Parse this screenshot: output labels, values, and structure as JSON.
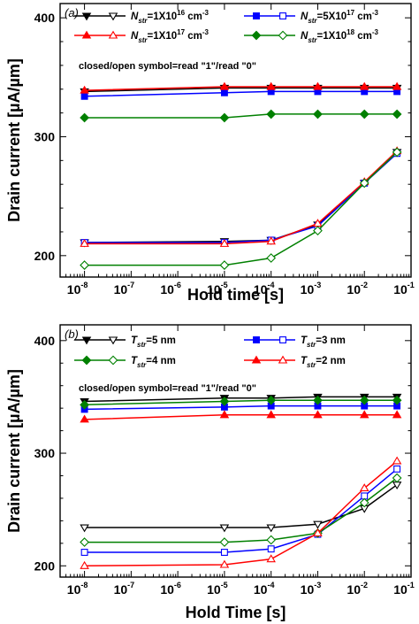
{
  "chart_data": [
    {
      "type": "line",
      "panel_label": "(a)",
      "xlabel": "Hold time [s]",
      "ylabel": "Drain current [µA/µm]",
      "x_scale": "log",
      "xlim": [
        3e-09,
        0.1
      ],
      "ylim": [
        182,
        412
      ],
      "x_ticks": [
        {
          "base": "10",
          "exp": "-8"
        },
        {
          "base": "10",
          "exp": "-7"
        },
        {
          "base": "10",
          "exp": "-6"
        },
        {
          "base": "10",
          "exp": "-5"
        },
        {
          "base": "10",
          "exp": "-4"
        },
        {
          "base": "10",
          "exp": "-3"
        },
        {
          "base": "10",
          "exp": "-2"
        },
        {
          "base": "10",
          "exp": "-1"
        }
      ],
      "y_ticks": [
        "200",
        "300",
        "400"
      ],
      "note": "closed/open symbol=read \"1\"/read \"0\"",
      "legend": [
        {
          "sym": "N",
          "sub": "str",
          "val": "=1X10",
          "sup": "16",
          "unit": " cm",
          "unitsup": "-3"
        },
        {
          "sym": "N",
          "sub": "str",
          "val": "=5X10",
          "sup": "17",
          "unit": " cm",
          "unitsup": "-3"
        },
        {
          "sym": "N",
          "sub": "str",
          "val": "=1X10",
          "sup": "17",
          "unit": " cm",
          "unitsup": "-3"
        },
        {
          "sym": "N",
          "sub": "str",
          "val": "=1X10",
          "sup": "18",
          "unit": " cm",
          "unitsup": "-3"
        }
      ],
      "series": [
        {
          "legend_index": 0,
          "color": "#000000",
          "marker": "triangle-down",
          "read": "1",
          "x": [
            1e-08,
            1e-05,
            0.0001,
            0.001,
            0.01,
            0.05
          ],
          "y": [
            338,
            341,
            341,
            341,
            341,
            341
          ]
        },
        {
          "legend_index": 0,
          "color": "#000000",
          "marker": "triangle-down",
          "read": "0",
          "x": [
            1e-08,
            1e-05,
            0.0001,
            0.001,
            0.01,
            0.05
          ],
          "y": [
            211,
            212,
            213,
            226,
            261,
            287
          ]
        },
        {
          "legend_index": 1,
          "color": "#0000ff",
          "marker": "square",
          "read": "1",
          "x": [
            1e-08,
            1e-05,
            0.0001,
            0.001,
            0.01,
            0.05
          ],
          "y": [
            334,
            337,
            338,
            338,
            338,
            338
          ]
        },
        {
          "legend_index": 1,
          "color": "#0000ff",
          "marker": "square",
          "read": "0",
          "x": [
            1e-08,
            1e-05,
            0.0001,
            0.001,
            0.01,
            0.05
          ],
          "y": [
            211,
            211,
            213,
            225,
            261,
            286
          ]
        },
        {
          "legend_index": 2,
          "color": "#ff0000",
          "marker": "triangle-up",
          "read": "1",
          "x": [
            1e-08,
            1e-05,
            0.0001,
            0.001,
            0.01,
            0.05
          ],
          "y": [
            339,
            342,
            342,
            342,
            342,
            342
          ]
        },
        {
          "legend_index": 2,
          "color": "#ff0000",
          "marker": "triangle-up",
          "read": "0",
          "x": [
            1e-08,
            1e-05,
            0.0001,
            0.001,
            0.01,
            0.05
          ],
          "y": [
            210,
            210,
            212,
            227,
            262,
            288
          ]
        },
        {
          "legend_index": 3,
          "color": "#008000",
          "marker": "diamond",
          "read": "1",
          "x": [
            1e-08,
            1e-05,
            0.0001,
            0.001,
            0.01,
            0.05
          ],
          "y": [
            316,
            316,
            319,
            319,
            319,
            319
          ]
        },
        {
          "legend_index": 3,
          "color": "#008000",
          "marker": "diamond",
          "read": "0",
          "x": [
            1e-08,
            1e-05,
            0.0001,
            0.001,
            0.01,
            0.05
          ],
          "y": [
            192,
            192,
            198,
            221,
            261,
            287
          ]
        }
      ]
    },
    {
      "type": "line",
      "panel_label": "(b)",
      "xlabel": "Hold Time [s]",
      "ylabel": "Drain current [µA/µm]",
      "x_scale": "log",
      "xlim": [
        3e-09,
        0.1
      ],
      "ylim": [
        190,
        414
      ],
      "x_ticks": [
        {
          "base": "10",
          "exp": "-8"
        },
        {
          "base": "10",
          "exp": "-7"
        },
        {
          "base": "10",
          "exp": "-6"
        },
        {
          "base": "10",
          "exp": "-5"
        },
        {
          "base": "10",
          "exp": "-4"
        },
        {
          "base": "10",
          "exp": "-3"
        },
        {
          "base": "10",
          "exp": "-2"
        },
        {
          "base": "10",
          "exp": "-1"
        }
      ],
      "y_ticks": [
        "200",
        "300",
        "400"
      ],
      "note": "closed/open symbol=read \"1\"/read \"0\"",
      "legend": [
        {
          "sym": "T",
          "sub": "str",
          "val": "=5 nm",
          "sup": "",
          "unit": "",
          "unitsup": ""
        },
        {
          "sym": "T",
          "sub": "str",
          "val": "=3 nm",
          "sup": "",
          "unit": "",
          "unitsup": ""
        },
        {
          "sym": "T",
          "sub": "str",
          "val": "=4 nm",
          "sup": "",
          "unit": "",
          "unitsup": ""
        },
        {
          "sym": "T",
          "sub": "str",
          "val": "=2 nm",
          "sup": "",
          "unit": "",
          "unitsup": ""
        }
      ],
      "series": [
        {
          "legend_index": 0,
          "color": "#000000",
          "marker": "triangle-down",
          "read": "1",
          "x": [
            1e-08,
            1e-05,
            0.0001,
            0.001,
            0.01,
            0.05
          ],
          "y": [
            346,
            349,
            349,
            350,
            350,
            350
          ]
        },
        {
          "legend_index": 0,
          "color": "#000000",
          "marker": "triangle-down",
          "read": "0",
          "x": [
            1e-08,
            1e-05,
            0.0001,
            0.001,
            0.01,
            0.05
          ],
          "y": [
            234,
            234,
            234,
            237,
            251,
            272
          ]
        },
        {
          "legend_index": 1,
          "color": "#0000ff",
          "marker": "square",
          "read": "1",
          "x": [
            1e-08,
            1e-05,
            0.0001,
            0.001,
            0.01,
            0.05
          ],
          "y": [
            339,
            341,
            342,
            342,
            342,
            342
          ]
        },
        {
          "legend_index": 1,
          "color": "#0000ff",
          "marker": "square",
          "read": "0",
          "x": [
            1e-08,
            1e-05,
            0.0001,
            0.001,
            0.01,
            0.05
          ],
          "y": [
            212,
            212,
            215,
            228,
            262,
            286
          ]
        },
        {
          "legend_index": 2,
          "color": "#008000",
          "marker": "diamond",
          "read": "1",
          "x": [
            1e-08,
            1e-05,
            0.0001,
            0.001,
            0.01,
            0.05
          ],
          "y": [
            343,
            346,
            347,
            347,
            347,
            347
          ]
        },
        {
          "legend_index": 2,
          "color": "#008000",
          "marker": "diamond",
          "read": "0",
          "x": [
            1e-08,
            1e-05,
            0.0001,
            0.001,
            0.01,
            0.05
          ],
          "y": [
            221,
            221,
            223,
            229,
            256,
            278
          ]
        },
        {
          "legend_index": 3,
          "color": "#ff0000",
          "marker": "triangle-up",
          "read": "1",
          "x": [
            1e-08,
            1e-05,
            0.0001,
            0.001,
            0.01,
            0.05
          ],
          "y": [
            330,
            334,
            334,
            334,
            334,
            334
          ]
        },
        {
          "legend_index": 3,
          "color": "#ff0000",
          "marker": "triangle-up",
          "read": "0",
          "x": [
            1e-08,
            1e-05,
            0.0001,
            0.001,
            0.01,
            0.05
          ],
          "y": [
            200,
            201,
            206,
            229,
            269,
            293
          ]
        }
      ]
    }
  ]
}
